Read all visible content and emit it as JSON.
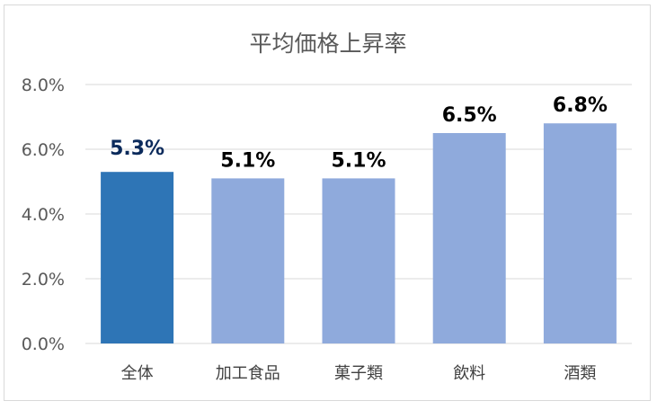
{
  "chart_data": {
    "type": "bar",
    "title": "平均価格上昇率",
    "categories": [
      "全体",
      "加工食品",
      "菓子類",
      "飲料",
      "酒類"
    ],
    "values": [
      5.3,
      5.1,
      5.1,
      6.5,
      6.8
    ],
    "data_labels": [
      "5.3%",
      "5.1%",
      "5.1%",
      "6.5%",
      "6.8%"
    ],
    "bar_colors": [
      "#2e75b6",
      "#8faadc",
      "#8faadc",
      "#8faadc",
      "#8faadc"
    ],
    "label_colors": [
      "#0b2a5b",
      "#000000",
      "#000000",
      "#000000",
      "#000000"
    ],
    "ylim": [
      0,
      8
    ],
    "yticks": [
      0,
      2,
      4,
      6,
      8
    ],
    "ytick_labels": [
      "0.0%",
      "2.0%",
      "4.0%",
      "6.0%",
      "8.0%"
    ],
    "grid": true,
    "legend": "none",
    "grid_color": "#d9d9d9"
  }
}
